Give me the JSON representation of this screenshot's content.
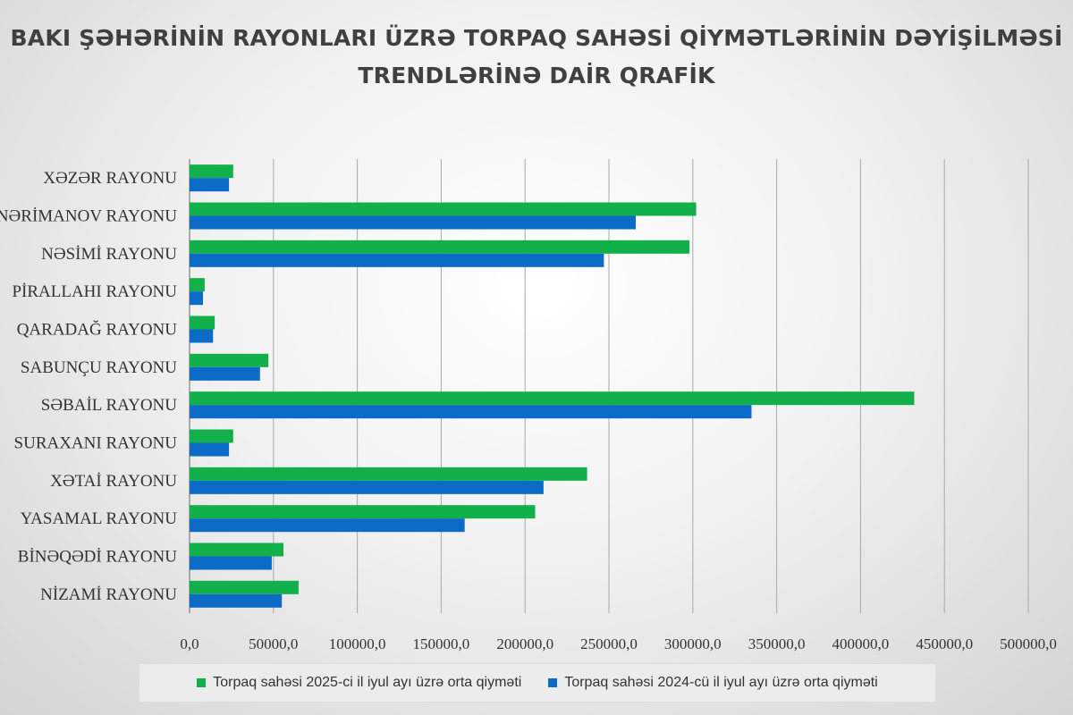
{
  "title_line1": "BAKI ŞƏHƏRİNİN RAYONLARI ÜZRƏ TORPAQ SAHƏSİ QİYMƏTLƏRİNİN DƏYİŞİLMƏSİ",
  "title_line2": "TRENDLƏRİNƏ DAİR QRAFİK",
  "colors": {
    "series_2025": "#12b04a",
    "series_2024": "#0b6bc6",
    "grid": "#a8a8a8"
  },
  "legend": {
    "series_2025": "Torpaq sahəsi 2025-ci  il iyul ayı üzrə  orta qiyməti",
    "series_2024": "Torpaq sahəsi 2024-cü il iyul ayı üzrə orta qiyməti"
  },
  "chart_data": {
    "type": "bar",
    "orientation": "horizontal",
    "categories": [
      "XƏZƏR RAYONU",
      "NƏRİMANOV RAYONU",
      "NƏSİMİ RAYONU",
      "PİRALLAHI RAYONU",
      "QARADAĞ RAYONU",
      "SABUNÇU RAYONU",
      "SƏBAİL RAYONU",
      "SURAXANI RAYONU",
      "XƏTAİ RAYONU",
      "YASAMAL RAYONU",
      "BİNƏQƏDİ RAYONU",
      "NİZAMİ RAYONU"
    ],
    "series": [
      {
        "name": "Torpaq sahəsi 2025-ci  il iyul ayı üzrə  orta qiyməti",
        "values": [
          26000,
          302000,
          298000,
          9000,
          15000,
          47000,
          432000,
          26000,
          237000,
          206000,
          56000,
          65000
        ]
      },
      {
        "name": "Torpaq sahəsi 2024-cü il iyul ayı üzrə orta qiyməti",
        "values": [
          23500,
          266000,
          247000,
          8000,
          14000,
          42000,
          335000,
          23500,
          211000,
          164000,
          49000,
          55000
        ]
      }
    ],
    "xlim": [
      0,
      500000
    ],
    "xticks": [
      "0,0",
      "50000,0",
      "100000,0",
      "150000,0",
      "200000,0",
      "250000,0",
      "300000,0",
      "350000,0",
      "400000,0",
      "450000,0",
      "500000,0"
    ],
    "grid": "vertical",
    "legend_position": "bottom"
  }
}
